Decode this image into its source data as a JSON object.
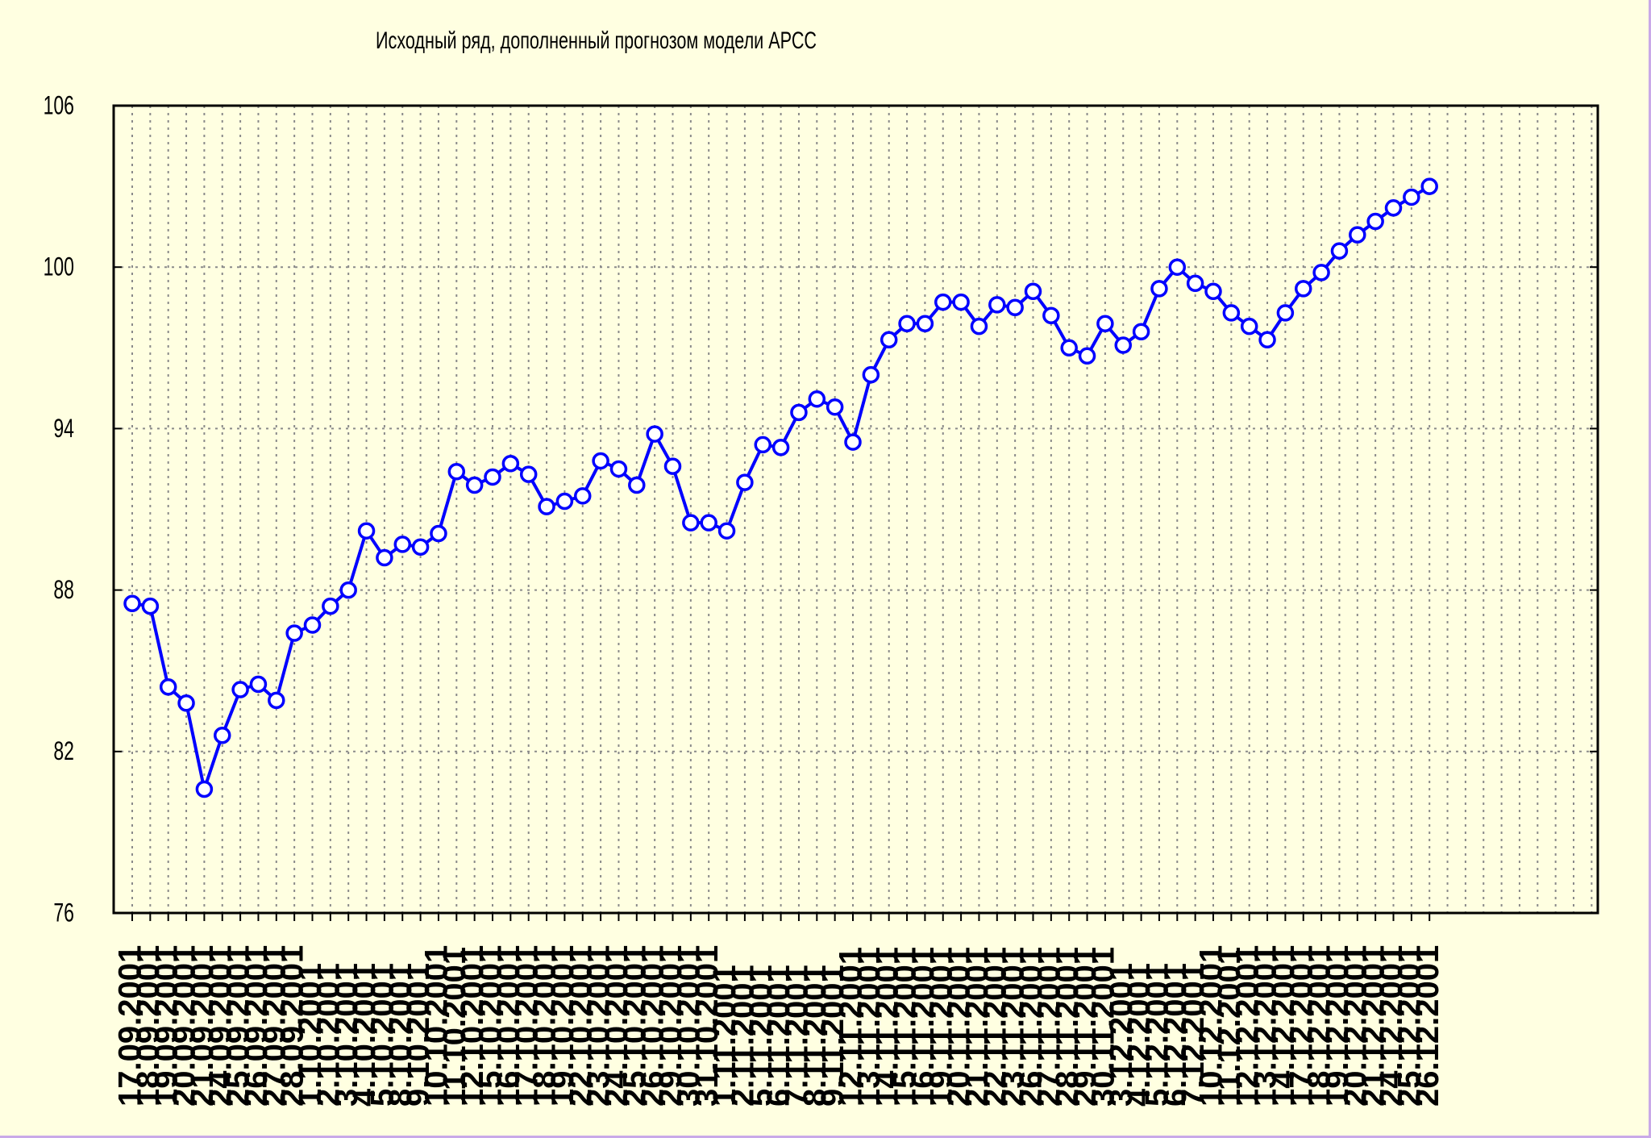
{
  "chart_data": {
    "type": "line",
    "title": "Исходный ряд, дополненный прогнозом модели АРСС",
    "xlabel": "",
    "ylabel": "",
    "ylim": [
      76,
      106
    ],
    "yticks": [
      "106",
      "100",
      "94",
      "88",
      "82",
      "76"
    ],
    "grid": true,
    "x": [
      "17.09.2001",
      "18.09.2001",
      "19.09.2001",
      "20.09.2001",
      "21.09.2001",
      "24.09.2001",
      "25.09.2001",
      "26.09.2001",
      "27.09.2001",
      "28.09.2001",
      "1.10.2001",
      "2.10.2001",
      "3.10.2001",
      "4.10.2001",
      "5.10.2001",
      "8.10.2001",
      "9.10.2001",
      "10.10.2001",
      "11.10.2001",
      "12.10.2001",
      "15.10.2001",
      "16.10.2001",
      "17.10.2001",
      "18.10.2001",
      "19.10.2001",
      "22.10.2001",
      "23.10.2001",
      "24.10.2001",
      "25.10.2001",
      "26.10.2001",
      "29.10.2001",
      "30.10.2001",
      "31.10.2001",
      "1.11.2001",
      "2.11.2001",
      "5.11.2001",
      "6.11.2001",
      "7.11.2001",
      "8.11.2001",
      "9.11.2001",
      "12.11.2001",
      "13.11.2001",
      "14.11.2001",
      "15.11.2001",
      "16.11.2001",
      "19.11.2001",
      "20.11.2001",
      "21.11.2001",
      "22.11.2001",
      "23.11.2001",
      "26.11.2001",
      "27.11.2001",
      "28.11.2001",
      "29.11.2001",
      "30.11.2001",
      "3.12.2001",
      "4.12.2001",
      "5.12.2001",
      "6.12.2001",
      "7.12.2001",
      "10.12.2001",
      "11.12.2001",
      "12.12.2001",
      "13.12.2001",
      "14.12.2001",
      "17.12.2001",
      "18.12.2001",
      "19.12.2001",
      "20.12.2001",
      "21.12.2001",
      "24.12.2001",
      "25.12.2001",
      "26.12.2001"
    ],
    "series": [
      {
        "color": "#0000ff",
        "values": [
          87.5,
          87.4,
          84.4,
          83.8,
          80.6,
          82.6,
          84.3,
          84.5,
          83.9,
          86.4,
          86.7,
          87.4,
          88.0,
          90.2,
          89.2,
          89.7,
          89.6,
          90.1,
          92.4,
          91.9,
          92.2,
          92.7,
          92.3,
          91.1,
          91.3,
          91.5,
          92.8,
          92.5,
          91.9,
          93.8,
          92.6,
          90.5,
          90.5,
          90.2,
          92.0,
          93.4,
          93.3,
          94.6,
          95.1,
          94.8,
          93.5,
          96.0,
          97.3,
          97.9,
          97.9,
          98.7,
          98.7,
          97.8,
          98.6,
          98.5,
          99.1,
          98.2,
          97.0,
          96.7,
          97.9,
          97.1,
          97.6,
          99.2,
          100.0,
          99.4,
          99.1,
          98.3,
          97.8,
          97.3,
          98.3,
          99.2,
          99.8,
          100.6,
          101.2,
          101.7,
          102.2,
          102.6,
          103.0
        ]
      }
    ]
  }
}
